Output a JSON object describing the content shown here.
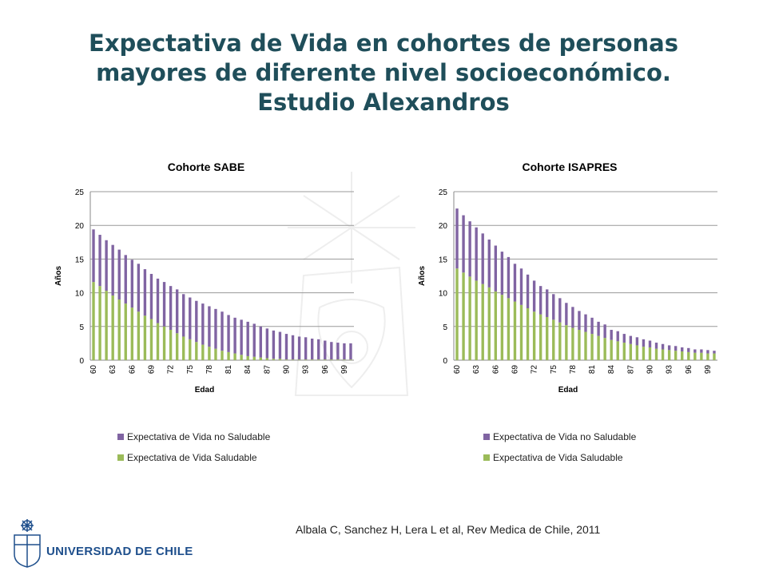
{
  "title_lines": [
    "Expectativa de Vida  en cohortes de personas",
    "mayores de diferente nivel socioeconómico.",
    "Estudio Alexandros"
  ],
  "citation": "Albala C, Sanchez H, Lera L et al, Rev Medica de Chile, 2011",
  "institution": "UNIVERSIDAD DE CHILE",
  "colors": {
    "no_saludable": "#8064a2",
    "saludable": "#9bbb59",
    "title": "#1f4e5a",
    "institution": "#1e4f8c"
  },
  "chart_data": [
    {
      "type": "bar",
      "stacked": true,
      "title": "Cohorte SABE",
      "xlabel": "Edad",
      "ylabel": "Años",
      "ylim": [
        0,
        25
      ],
      "yticks": [
        0,
        5,
        10,
        15,
        20,
        25
      ],
      "grid": true,
      "legend_position": "bottom",
      "x_tick_labels": [
        "60",
        "63",
        "66",
        "69",
        "72",
        "75",
        "78",
        "81",
        "84",
        "87",
        "90",
        "93",
        "96",
        "99"
      ],
      "categories": [
        60,
        61,
        62,
        63,
        64,
        65,
        66,
        67,
        68,
        69,
        70,
        71,
        72,
        73,
        74,
        75,
        76,
        77,
        78,
        79,
        80,
        81,
        82,
        83,
        84,
        85,
        86,
        87,
        88,
        89,
        90,
        91,
        92,
        93,
        94,
        95,
        96,
        97,
        98,
        99,
        100
      ],
      "series": [
        {
          "name": "Expectativa de Vida Saludable",
          "color": "#9bbb59",
          "values": [
            11.6,
            11.0,
            10.3,
            9.6,
            9.0,
            8.4,
            7.8,
            7.2,
            6.6,
            6.1,
            5.5,
            5.0,
            4.5,
            4.0,
            3.5,
            3.1,
            2.7,
            2.3,
            2.0,
            1.7,
            1.4,
            1.2,
            1.0,
            0.8,
            0.6,
            0.5,
            0.4,
            0.3,
            0.2,
            0.2,
            0.1,
            0.1,
            0.1,
            0.1,
            0.1,
            0.1,
            0.1,
            0.1,
            0.1,
            0.1,
            0.1
          ]
        },
        {
          "name": "Expectativa de Vida no Saludable",
          "color": "#8064a2",
          "values": [
            7.8,
            7.6,
            7.5,
            7.5,
            7.4,
            7.2,
            7.1,
            7.1,
            6.9,
            6.7,
            6.6,
            6.6,
            6.5,
            6.5,
            6.3,
            6.2,
            6.1,
            6.1,
            6.0,
            5.9,
            5.8,
            5.5,
            5.3,
            5.2,
            5.1,
            4.9,
            4.6,
            4.4,
            4.2,
            4.0,
            3.8,
            3.6,
            3.4,
            3.3,
            3.1,
            3.0,
            2.8,
            2.6,
            2.5,
            2.4,
            2.4
          ]
        }
      ]
    },
    {
      "type": "bar",
      "stacked": true,
      "title": "Cohorte ISAPRES",
      "xlabel": "Edad",
      "ylabel": "Años",
      "ylim": [
        0,
        25
      ],
      "yticks": [
        0,
        5,
        10,
        15,
        20,
        25
      ],
      "grid": true,
      "legend_position": "bottom",
      "x_tick_labels": [
        "60",
        "63",
        "66",
        "69",
        "72",
        "75",
        "78",
        "81",
        "84",
        "87",
        "90",
        "93",
        "96",
        "99"
      ],
      "categories": [
        60,
        61,
        62,
        63,
        64,
        65,
        66,
        67,
        68,
        69,
        70,
        71,
        72,
        73,
        74,
        75,
        76,
        77,
        78,
        79,
        80,
        81,
        82,
        83,
        84,
        85,
        86,
        87,
        88,
        89,
        90,
        91,
        92,
        93,
        94,
        95,
        96,
        97,
        98,
        99,
        100
      ],
      "series": [
        {
          "name": "Expectativa de Vida Saludable",
          "color": "#9bbb59",
          "values": [
            13.6,
            13.0,
            12.4,
            11.8,
            11.3,
            10.8,
            10.2,
            9.7,
            9.2,
            8.7,
            8.2,
            7.7,
            7.2,
            6.8,
            6.4,
            6.0,
            5.6,
            5.2,
            4.8,
            4.5,
            4.2,
            3.9,
            3.6,
            3.3,
            3.0,
            2.8,
            2.6,
            2.4,
            2.2,
            2.0,
            1.9,
            1.7,
            1.6,
            1.5,
            1.4,
            1.3,
            1.2,
            1.1,
            1.1,
            1.0,
            1.0
          ]
        },
        {
          "name": "Expectativa de Vida no Saludable",
          "color": "#8064a2",
          "values": [
            8.9,
            8.5,
            8.2,
            7.9,
            7.5,
            7.1,
            6.8,
            6.4,
            6.1,
            5.6,
            5.4,
            5.0,
            4.6,
            4.2,
            4.1,
            3.8,
            3.6,
            3.3,
            3.1,
            2.8,
            2.6,
            2.4,
            2.1,
            2.0,
            1.5,
            1.5,
            1.3,
            1.2,
            1.2,
            1.1,
            1.0,
            0.9,
            0.8,
            0.7,
            0.7,
            0.6,
            0.6,
            0.5,
            0.5,
            0.5,
            0.4
          ]
        }
      ]
    }
  ]
}
